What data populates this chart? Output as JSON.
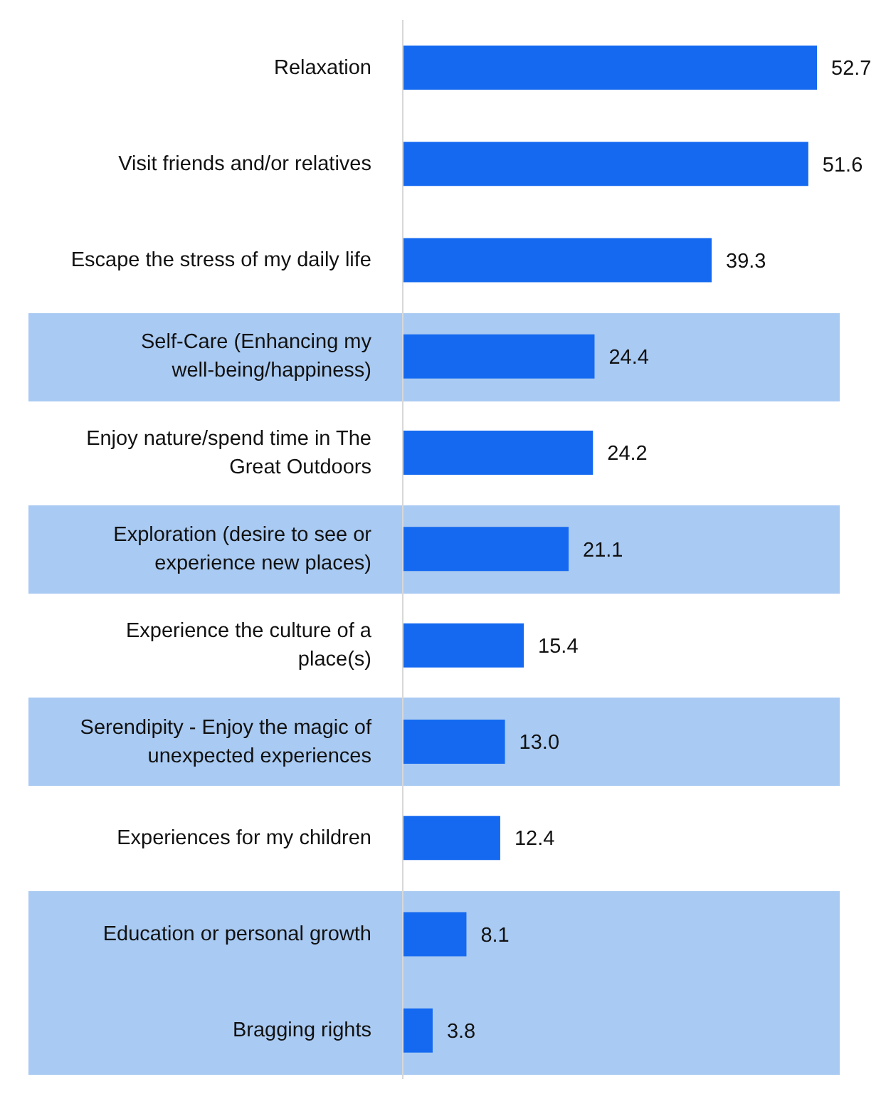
{
  "chart_data": {
    "type": "bar",
    "orientation": "horizontal",
    "categories": [
      "Relaxation",
      "Visit friends and/or relatives",
      "Escape the stress of my daily life",
      "Self-Care (Enhancing my well-being/happiness)",
      "Enjoy nature/spend time in The Great Outdoors",
      "Exploration (desire to see or experience new places)",
      "Experience the culture of a place(s)",
      "Serendipity - Enjoy the magic of unexpected experiences",
      "Experiences for my children",
      "Education or personal growth",
      "Bragging rights"
    ],
    "values": [
      52.7,
      51.6,
      39.3,
      24.4,
      24.2,
      21.1,
      15.4,
      13.0,
      12.4,
      8.1,
      3.8
    ],
    "color": "#1469f0",
    "tick_labels": "y",
    "value_labels": [
      "52.7",
      "51.6",
      "39.3",
      "24.4",
      "24.2",
      "21.1",
      "15.4",
      "13.0",
      "12.4",
      "8.1",
      "3.8"
    ],
    "bands": [
      {
        "axis": "y",
        "from": "Self-Care (Enhancing my well-being/happiness)",
        "to": "Self-Care (Enhancing my well-being/happiness)",
        "color": "#a9caf2"
      },
      {
        "axis": "y",
        "from": "Exploration (desire to see or experience new places)",
        "to": "Exploration (desire to see or experience new places)",
        "color": "#a9caf2"
      },
      {
        "axis": "y",
        "from": "Serendipity - Enjoy the magic of unexpected experiences",
        "to": "Serendipity - Enjoy the magic of unexpected experiences",
        "color": "#a9caf2"
      },
      {
        "axis": "y",
        "from": "Education or personal growth",
        "to": "Bragging rights",
        "color": "#a9caf2"
      }
    ]
  }
}
